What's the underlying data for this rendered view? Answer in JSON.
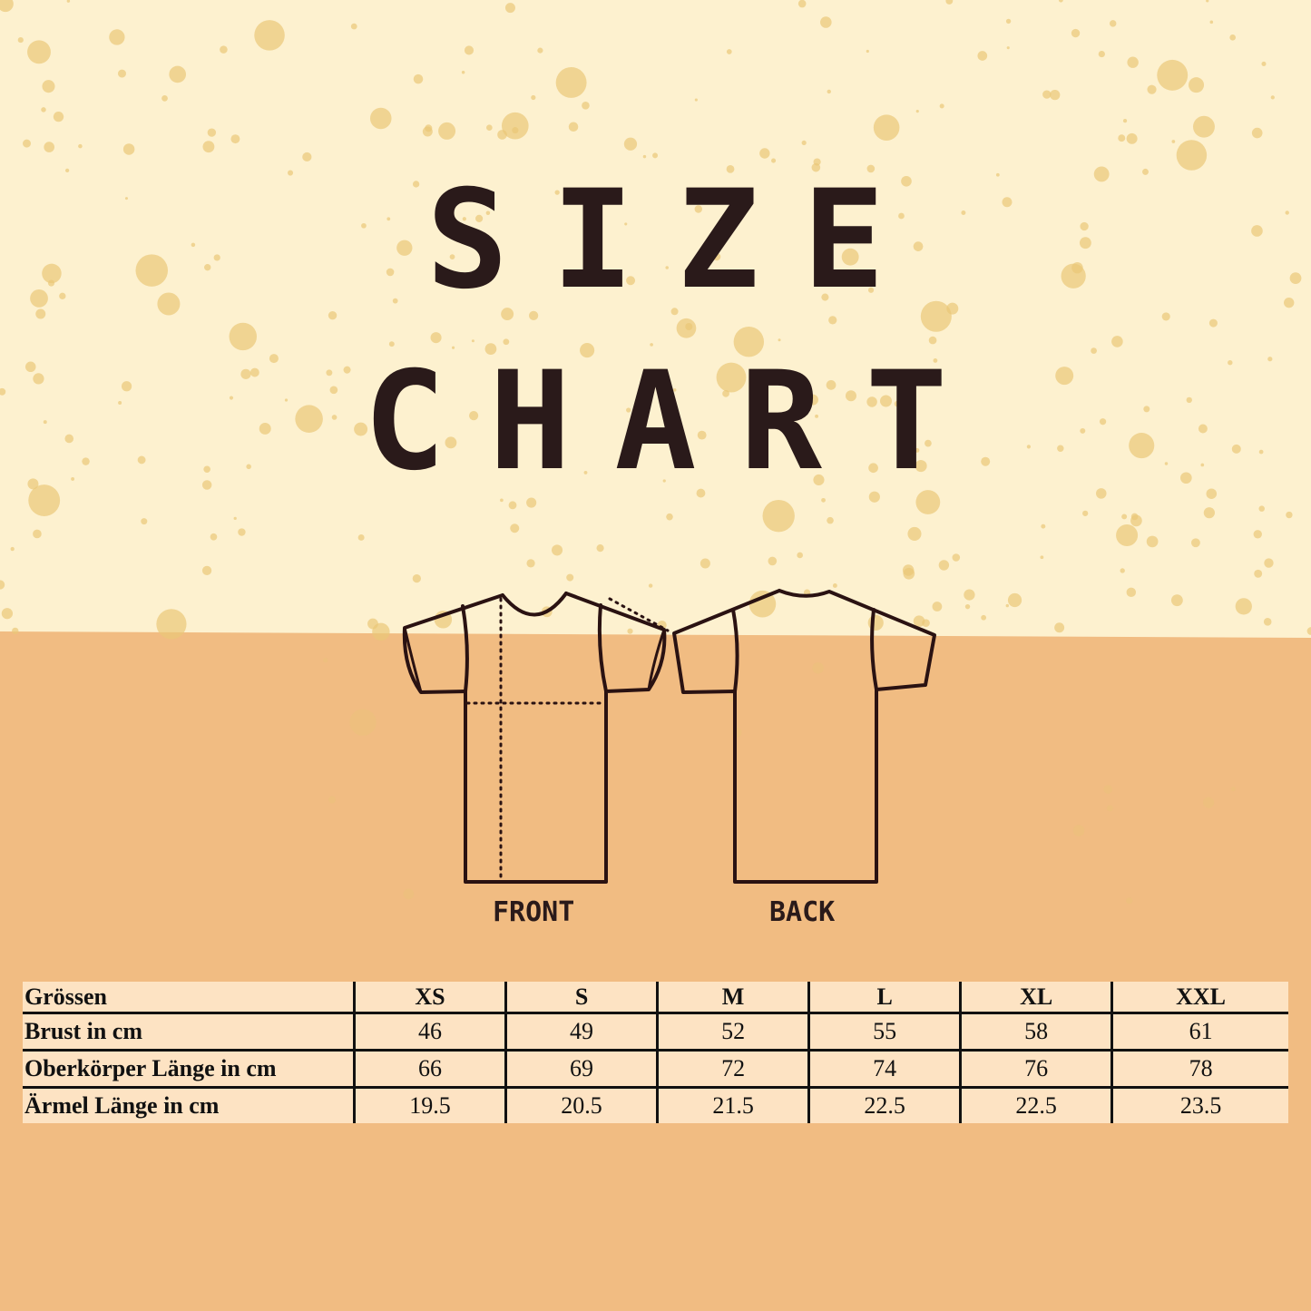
{
  "title_line1": "SIZE",
  "title_line2": "CHART",
  "labels": {
    "front": "FRONT",
    "back": "BACK"
  },
  "colors": {
    "top_bg": "#fdf1cf",
    "bottom_bg": "#f1bc82",
    "splatter": "#e9c777",
    "ink": "#2a1a1a",
    "table_bg": "#fde3c3"
  },
  "table": {
    "header": [
      "Grössen",
      "XS",
      "S",
      "M",
      "L",
      "XL",
      "XXL"
    ],
    "rows": [
      [
        "Brust in cm",
        "46",
        "49",
        "52",
        "55",
        "58",
        "61"
      ],
      [
        "Oberkörper Länge in cm",
        "66",
        "69",
        "72",
        "74",
        "76",
        "78"
      ],
      [
        "Ärmel Länge in cm",
        "19.5",
        "20.5",
        "21.5",
        "22.5",
        "22.5",
        "23.5"
      ]
    ]
  }
}
